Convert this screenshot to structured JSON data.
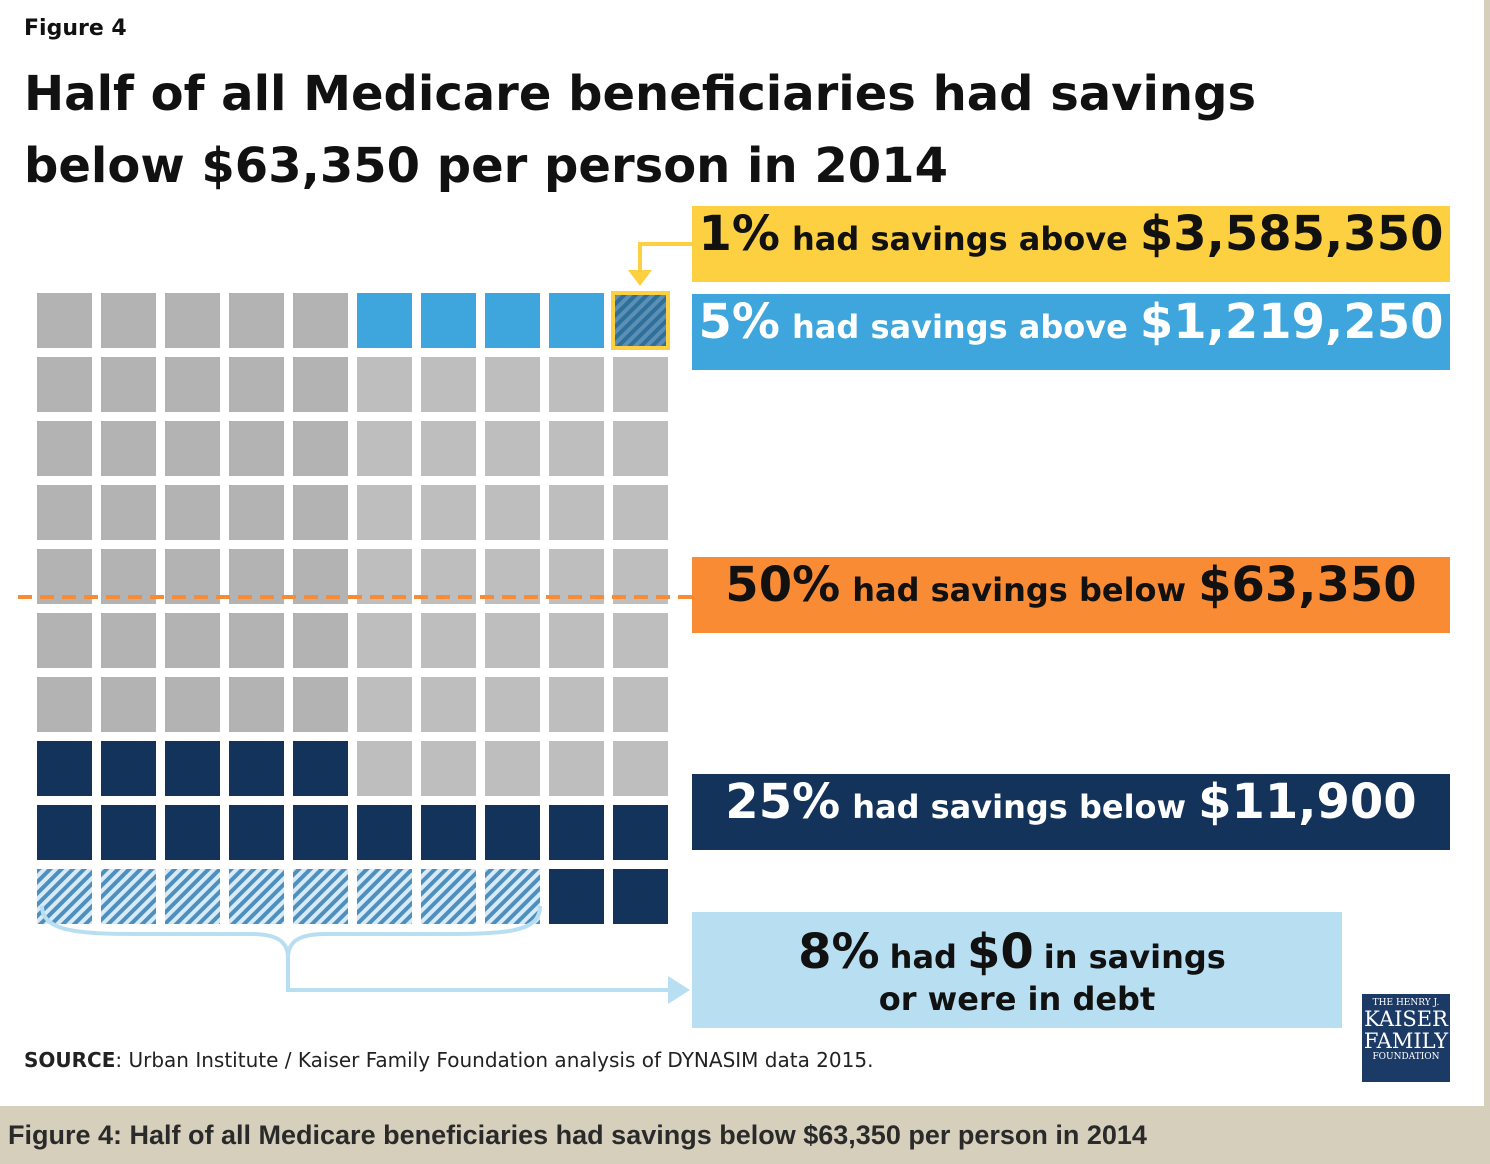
{
  "figure_label": "Figure 4",
  "title": "Half of all Medicare beneficiaries had savings below $63,350 per person in 2014",
  "callouts": {
    "top1": {
      "pct": "1%",
      "mid": "had savings above",
      "amount": "$3,585,350"
    },
    "top5": {
      "pct": "5%",
      "mid": "had savings above",
      "amount": "$1,219,250"
    },
    "median": {
      "pct": "50%",
      "mid": "had savings below",
      "amount": "$63,350"
    },
    "bottom25": {
      "pct": "25%",
      "mid": "had savings below",
      "amount": "$11,900"
    },
    "zero": {
      "pct": "8%",
      "mid": "had",
      "amount": "$0",
      "tail": "in savings",
      "line2": "or were in debt"
    }
  },
  "source_label": "SOURCE",
  "source_text": ": Urban Institute / Kaiser Family Foundation analysis of DYNASIM data 2015.",
  "logo": {
    "line1": "THE HENRY J.",
    "line2": "KAISER",
    "line3": "FAMILY",
    "line4": "FOUNDATION"
  },
  "caption": "Figure 4: Half of all Medicare beneficiaries had savings below $63,350 per person in 2014",
  "colors": {
    "gray": "#b3b3b3",
    "gray_light": "#bebebe",
    "blue": "#3ea6dc",
    "yellow": "#fcd040",
    "orange": "#f98b34",
    "navy": "#14335a",
    "light_blue": "#b8def2"
  },
  "chart_data": {
    "type": "waffle",
    "total_units": 100,
    "grid": "10x10",
    "groups": [
      {
        "label": "1% had savings above $3,585,350",
        "percent": 1,
        "color": "#fcd040",
        "style": "hatched"
      },
      {
        "label": "5% had savings above $1,219,250",
        "percent": 5,
        "color": "#3ea6dc"
      },
      {
        "label": "50% had savings below $63,350",
        "percent": 50,
        "marker": "dashed line"
      },
      {
        "label": "25% had savings below $11,900",
        "percent": 25,
        "color": "#14335a"
      },
      {
        "label": "8% had $0 in savings or were in debt",
        "percent": 8,
        "color": "#3ea6dc",
        "style": "hatched"
      }
    ]
  }
}
